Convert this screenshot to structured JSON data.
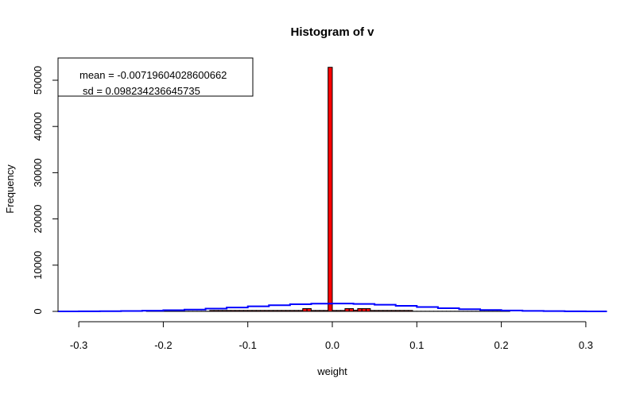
{
  "chart_data": {
    "type": "bar",
    "title": "Histogram of v",
    "xlabel": "weight",
    "ylabel": "Frequency",
    "xlim": [
      -0.325,
      0.325
    ],
    "ylim": [
      0,
      52800
    ],
    "xticks": [
      -0.3,
      -0.2,
      -0.1,
      0.0,
      0.1,
      0.2,
      0.3
    ],
    "xtick_labels": [
      "-0.3",
      "-0.2",
      "-0.1",
      "0.0",
      "0.1",
      "0.2",
      "0.3"
    ],
    "yticks": [
      0,
      10000,
      20000,
      30000,
      40000,
      50000
    ],
    "ytick_labels": [
      "0",
      "10000",
      "20000",
      "30000",
      "40000",
      "50000"
    ],
    "bins": {
      "start": -0.22,
      "width": 0.005,
      "counts": [
        30,
        30,
        30,
        30,
        30,
        30,
        30,
        30,
        30,
        30,
        30,
        30,
        30,
        30,
        30,
        200,
        200,
        200,
        200,
        200,
        200,
        200,
        200,
        200,
        200,
        200,
        200,
        200,
        200,
        200,
        200,
        200,
        200,
        200,
        200,
        200,
        200,
        600,
        600,
        200,
        200,
        200,
        200,
        52800,
        200,
        200,
        200,
        600,
        600,
        250,
        600,
        600,
        600,
        200,
        200,
        200,
        200,
        200,
        200,
        200,
        200,
        200,
        200,
        30,
        30,
        30,
        30,
        30,
        30,
        30,
        30,
        30,
        30,
        30,
        30,
        30,
        30,
        30,
        30,
        30,
        30,
        30,
        30,
        30,
        30,
        30
      ]
    },
    "bar_color": "#ff0000",
    "normal_curve": {
      "mean": -0.00719604028600662,
      "sd": 0.098234236645735,
      "peak": 1700,
      "color": "#0000ff"
    },
    "legend": {
      "position": "top-left",
      "lines": [
        "mean = -0.00719604028600662",
        "sd = 0.098234236645735"
      ]
    },
    "grid": false
  }
}
